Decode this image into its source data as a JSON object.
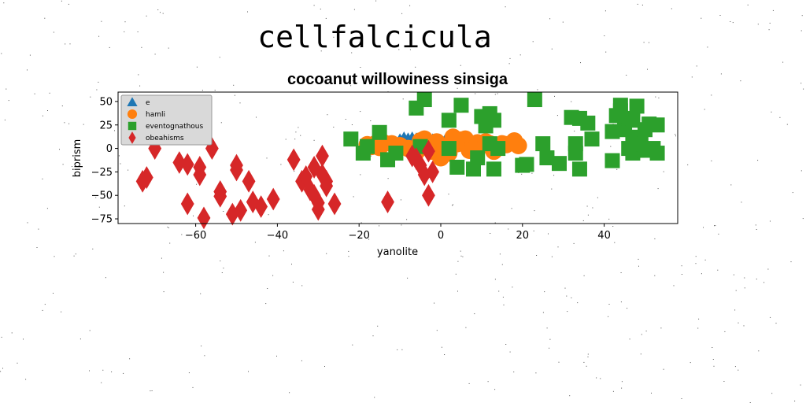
{
  "figure_title": "cellfalcicula",
  "chart_data": {
    "type": "scatter",
    "title": "cocoanut willowiness sinsiga",
    "xlabel": "yanolite",
    "ylabel": "biprism",
    "xlim": [
      -79,
      58
    ],
    "ylim": [
      -80,
      60
    ],
    "x_ticks": [
      -60,
      -40,
      -20,
      0,
      20,
      40
    ],
    "y_ticks": [
      -75,
      -50,
      -25,
      0,
      25,
      50
    ],
    "grid": false,
    "legend_position": "upper-left",
    "series": [
      {
        "name": "e",
        "marker": "triangle",
        "color": "#1f77b4",
        "points": [
          [
            -9,
            8
          ],
          [
            -8,
            7
          ],
          [
            -7,
            8
          ],
          [
            -6,
            7
          ],
          [
            -5,
            6
          ],
          [
            -4,
            7
          ],
          [
            -3,
            5
          ],
          [
            -2,
            6
          ],
          [
            -1,
            5
          ],
          [
            0,
            4
          ],
          [
            1,
            5
          ],
          [
            -10,
            6
          ]
        ]
      },
      {
        "name": "hamli",
        "marker": "circle",
        "color": "#ff7f0e",
        "points": [
          [
            -18,
            4
          ],
          [
            -16,
            5
          ],
          [
            -14,
            6
          ],
          [
            -12,
            5
          ],
          [
            -10,
            3
          ],
          [
            -8,
            0
          ],
          [
            -6,
            -4
          ],
          [
            -5,
            8
          ],
          [
            -4,
            10
          ],
          [
            -3,
            3
          ],
          [
            -2,
            -3
          ],
          [
            -1,
            7
          ],
          [
            0,
            -10
          ],
          [
            1,
            2
          ],
          [
            2,
            -5
          ],
          [
            3,
            12
          ],
          [
            4,
            5
          ],
          [
            5,
            9
          ],
          [
            6,
            10
          ],
          [
            7,
            -2
          ],
          [
            8,
            4
          ],
          [
            9,
            6
          ],
          [
            10,
            3
          ],
          [
            11,
            7
          ],
          [
            12,
            5
          ],
          [
            13,
            -3
          ],
          [
            14,
            2
          ],
          [
            15,
            5
          ],
          [
            16,
            4
          ],
          [
            18,
            8
          ],
          [
            19,
            3
          ],
          [
            -17,
            2
          ],
          [
            -15,
            1
          ]
        ]
      },
      {
        "name": "eventognathous",
        "marker": "square",
        "color": "#2ca02c",
        "points": [
          [
            -22,
            10
          ],
          [
            -19,
            -5
          ],
          [
            -18,
            2
          ],
          [
            -15,
            17
          ],
          [
            -13,
            -12
          ],
          [
            -11,
            -5
          ],
          [
            -6,
            43
          ],
          [
            -4,
            52
          ],
          [
            -5,
            2
          ],
          [
            2,
            30
          ],
          [
            2,
            0
          ],
          [
            4,
            -20
          ],
          [
            5,
            46
          ],
          [
            8,
            -22
          ],
          [
            9,
            -10
          ],
          [
            10,
            34
          ],
          [
            11,
            24
          ],
          [
            12,
            5
          ],
          [
            12,
            37
          ],
          [
            13,
            30
          ],
          [
            13,
            -22
          ],
          [
            14,
            0
          ],
          [
            20,
            -18
          ],
          [
            21,
            -17
          ],
          [
            23,
            52
          ],
          [
            25,
            5
          ],
          [
            26,
            -10
          ],
          [
            29,
            -16
          ],
          [
            32,
            33
          ],
          [
            33,
            5
          ],
          [
            33,
            -5
          ],
          [
            34,
            -22
          ],
          [
            34,
            32
          ],
          [
            36,
            27
          ],
          [
            37,
            10
          ],
          [
            42,
            -13
          ],
          [
            42,
            18
          ],
          [
            44,
            40
          ],
          [
            44,
            46
          ],
          [
            45,
            20
          ],
          [
            46,
            32
          ],
          [
            47,
            30
          ],
          [
            47,
            12
          ],
          [
            47,
            -5
          ],
          [
            48,
            45
          ],
          [
            48,
            -2
          ],
          [
            49,
            5
          ],
          [
            50,
            20
          ],
          [
            50,
            -2
          ],
          [
            51,
            26
          ],
          [
            52,
            0
          ],
          [
            53,
            25
          ],
          [
            53,
            -5
          ],
          [
            46,
            0
          ],
          [
            43,
            35
          ]
        ]
      },
      {
        "name": "obeahisms",
        "marker": "diamond",
        "color": "#d62728",
        "points": [
          [
            -73,
            -35
          ],
          [
            -72,
            -31
          ],
          [
            -70,
            0
          ],
          [
            -64,
            -15
          ],
          [
            -62,
            -59
          ],
          [
            -62,
            -17
          ],
          [
            -59,
            -20
          ],
          [
            -59,
            -28
          ],
          [
            -58,
            -74
          ],
          [
            -56,
            0
          ],
          [
            -54,
            -46
          ],
          [
            -54,
            -51
          ],
          [
            -51,
            -70
          ],
          [
            -50,
            -18
          ],
          [
            -50,
            -23
          ],
          [
            -49,
            -66
          ],
          [
            -47,
            -35
          ],
          [
            -46,
            -57
          ],
          [
            -44,
            -62
          ],
          [
            -41,
            -54
          ],
          [
            -36,
            -12
          ],
          [
            -34,
            -35
          ],
          [
            -33,
            -30
          ],
          [
            -32,
            -44
          ],
          [
            -31,
            -20
          ],
          [
            -31,
            -50
          ],
          [
            -30,
            -58
          ],
          [
            -30,
            -65
          ],
          [
            -29,
            -28
          ],
          [
            -29,
            -8
          ],
          [
            -28,
            -35
          ],
          [
            -28,
            -40
          ],
          [
            -26,
            -59
          ],
          [
            -13,
            -57
          ],
          [
            -7,
            -8
          ],
          [
            -6,
            -11
          ],
          [
            -5,
            -18
          ],
          [
            -4,
            -28
          ],
          [
            -3,
            -50
          ],
          [
            -3,
            -3
          ],
          [
            -2,
            -25
          ]
        ]
      }
    ]
  }
}
